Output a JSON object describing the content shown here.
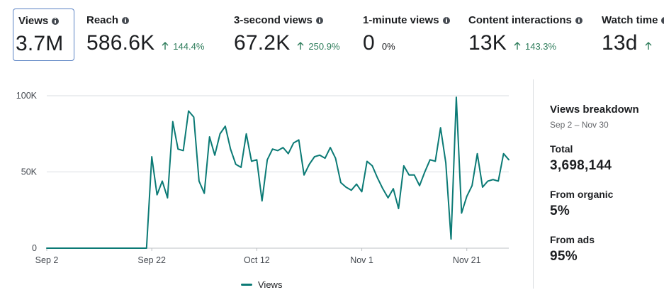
{
  "metrics": [
    {
      "label": "Views",
      "value": "3.7M",
      "change": "",
      "selected": true
    },
    {
      "label": "Reach",
      "value": "586.6K",
      "change": "144.4%"
    },
    {
      "label": "3-second views",
      "value": "67.2K",
      "change": "250.9%"
    },
    {
      "label": "1-minute views",
      "value": "0",
      "change": "0%"
    },
    {
      "label": "Content interactions",
      "value": "13K",
      "change": "143.3%"
    },
    {
      "label": "Watch time",
      "value": "13d",
      "change": ""
    }
  ],
  "colors": {
    "line": "#0b7a75",
    "positive": "#2e7d5b",
    "grid": "#dadde1",
    "selected_border": "#5b83c4"
  },
  "chart_data": {
    "type": "line",
    "x_tick_labels": [
      "Sep 2",
      "Sep 22",
      "Oct 12",
      "Nov 1",
      "Nov 21"
    ],
    "y_tick_labels": [
      "0",
      "50K",
      "100K"
    ],
    "ylim": [
      0,
      100000
    ],
    "start_date": "Sep 2",
    "end_date": "Nov 30",
    "legend": "Views",
    "series": [
      {
        "name": "Views",
        "values": [
          0,
          0,
          0,
          0,
          0,
          0,
          0,
          0,
          0,
          0,
          0,
          0,
          0,
          0,
          0,
          0,
          0,
          0,
          0,
          0,
          60000,
          35000,
          44000,
          33000,
          83000,
          65000,
          64000,
          90000,
          86000,
          44000,
          36000,
          73000,
          61000,
          75000,
          80000,
          65000,
          55000,
          53000,
          75000,
          57000,
          58000,
          31000,
          58000,
          65000,
          64000,
          66000,
          62000,
          69000,
          71000,
          48000,
          55000,
          60000,
          61000,
          59000,
          66000,
          59000,
          43000,
          40000,
          38000,
          42000,
          37000,
          57000,
          54000,
          46000,
          39000,
          33000,
          39000,
          26000,
          54000,
          48000,
          48000,
          41000,
          50000,
          58000,
          57000,
          79000,
          56000,
          6000,
          99000,
          23000,
          34000,
          41000,
          62000,
          40000,
          44000,
          45000,
          44000,
          62000,
          58000
        ]
      }
    ]
  },
  "breakdown": {
    "title": "Views breakdown",
    "date_range": "Sep 2 – Nov 30",
    "total_label": "Total",
    "total_value": "3,698,144",
    "organic_label": "From organic",
    "organic_value": "5%",
    "ads_label": "From ads",
    "ads_value": "95%"
  }
}
